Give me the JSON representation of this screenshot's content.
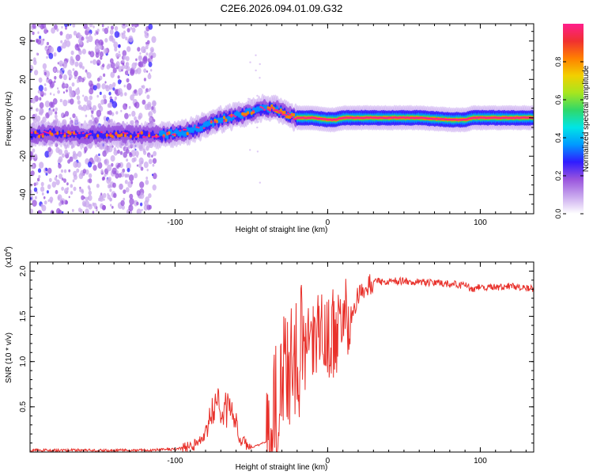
{
  "title": "C2E6.2026.094.01.09.G32",
  "chart_data": [
    {
      "type": "heatmap",
      "xlabel": "Height of straight line (km)",
      "ylabel": "Frequency (Hz)",
      "xlim": [
        -195,
        135
      ],
      "ylim": [
        -50,
        49
      ],
      "xticks": [
        -100,
        0,
        100
      ],
      "xtick_labels": [
        "-100",
        "0",
        "100"
      ],
      "yticks": [
        -40,
        -20,
        0,
        20,
        40
      ],
      "ytick_labels": [
        "-40",
        "-20",
        "0",
        "20",
        "40"
      ],
      "ridge": {
        "x": [
          -195,
          -180,
          -160,
          -140,
          -120,
          -108,
          -100,
          -90,
          -80,
          -70,
          -60,
          -50,
          -42,
          -36,
          -30,
          -25,
          -20,
          -10,
          0,
          5,
          10,
          20,
          40,
          60,
          80,
          90,
          95,
          100,
          110,
          120,
          135
        ],
        "y": [
          -9,
          -8,
          -9,
          -8.5,
          -9,
          -9,
          -8,
          -7,
          -4,
          -1,
          1,
          3,
          5,
          5,
          3,
          1,
          0,
          0,
          -1,
          -1,
          0,
          0,
          0,
          0,
          -1,
          -1,
          0,
          0,
          0,
          0,
          0
        ]
      },
      "scatter_region": {
        "x_from": -195,
        "x_to": -113
      },
      "colorbar": {
        "label": "Normalized spectral amplitude",
        "range": [
          0,
          1
        ],
        "ticks": [
          0.0,
          0.2,
          0.4,
          0.6,
          0.8
        ],
        "tick_labels": [
          "0.0",
          "0.2",
          "0.4",
          "0.6",
          "0.8"
        ],
        "colors": [
          "#ffffff",
          "#c9a8ee",
          "#9954dd",
          "#2f1cff",
          "#0099ff",
          "#00e5e5",
          "#2fd86a",
          "#a7e61e",
          "#f2d000",
          "#ff8000",
          "#f03030",
          "#ff1e8c"
        ]
      }
    },
    {
      "type": "line",
      "xlabel": "Height of straight line (km)",
      "ylabel": "SNR (10 * v/v)",
      "scale_label": "(x10",
      "scale_exp": "4",
      "xlim": [
        -195,
        135
      ],
      "ylim": [
        0,
        2.1
      ],
      "xticks": [
        -100,
        0,
        100
      ],
      "xtick_labels": [
        "-100",
        "0",
        "100"
      ],
      "yticks": [
        0.5,
        1.0,
        1.5,
        2.0
      ],
      "ytick_labels": [
        "0.5",
        "1.0",
        "1.5",
        "2.0"
      ],
      "series": [
        {
          "name": "SNR",
          "color": "#e8302a",
          "x": [
            -195,
            -170,
            -150,
            -120,
            -100,
            -90,
            -85,
            -80,
            -76,
            -72,
            -68,
            -64,
            -60,
            -56,
            -52,
            -50,
            -45,
            -40,
            -35,
            -32,
            -30,
            -28,
            -26,
            -24,
            -22,
            -20,
            -18,
            -14,
            -10,
            -6,
            -2,
            0,
            4,
            8,
            12,
            16,
            20,
            24,
            28,
            32,
            40,
            50,
            60,
            70,
            80,
            90,
            95,
            100,
            110,
            120,
            135
          ],
          "y": [
            0.02,
            0.02,
            0.02,
            0.02,
            0.03,
            0.06,
            0.1,
            0.2,
            0.42,
            0.55,
            0.48,
            0.45,
            0.3,
            0.12,
            0.06,
            0.05,
            0.08,
            0.12,
            0.35,
            0.6,
            0.72,
            0.8,
            0.9,
            0.95,
            1.05,
            1.2,
            1.1,
            1.2,
            1.18,
            1.25,
            1.3,
            1.3,
            1.32,
            1.35,
            1.42,
            1.55,
            1.72,
            1.8,
            1.86,
            1.88,
            1.89,
            1.89,
            1.88,
            1.87,
            1.86,
            1.84,
            1.8,
            1.83,
            1.82,
            1.84,
            1.8
          ]
        }
      ]
    }
  ]
}
